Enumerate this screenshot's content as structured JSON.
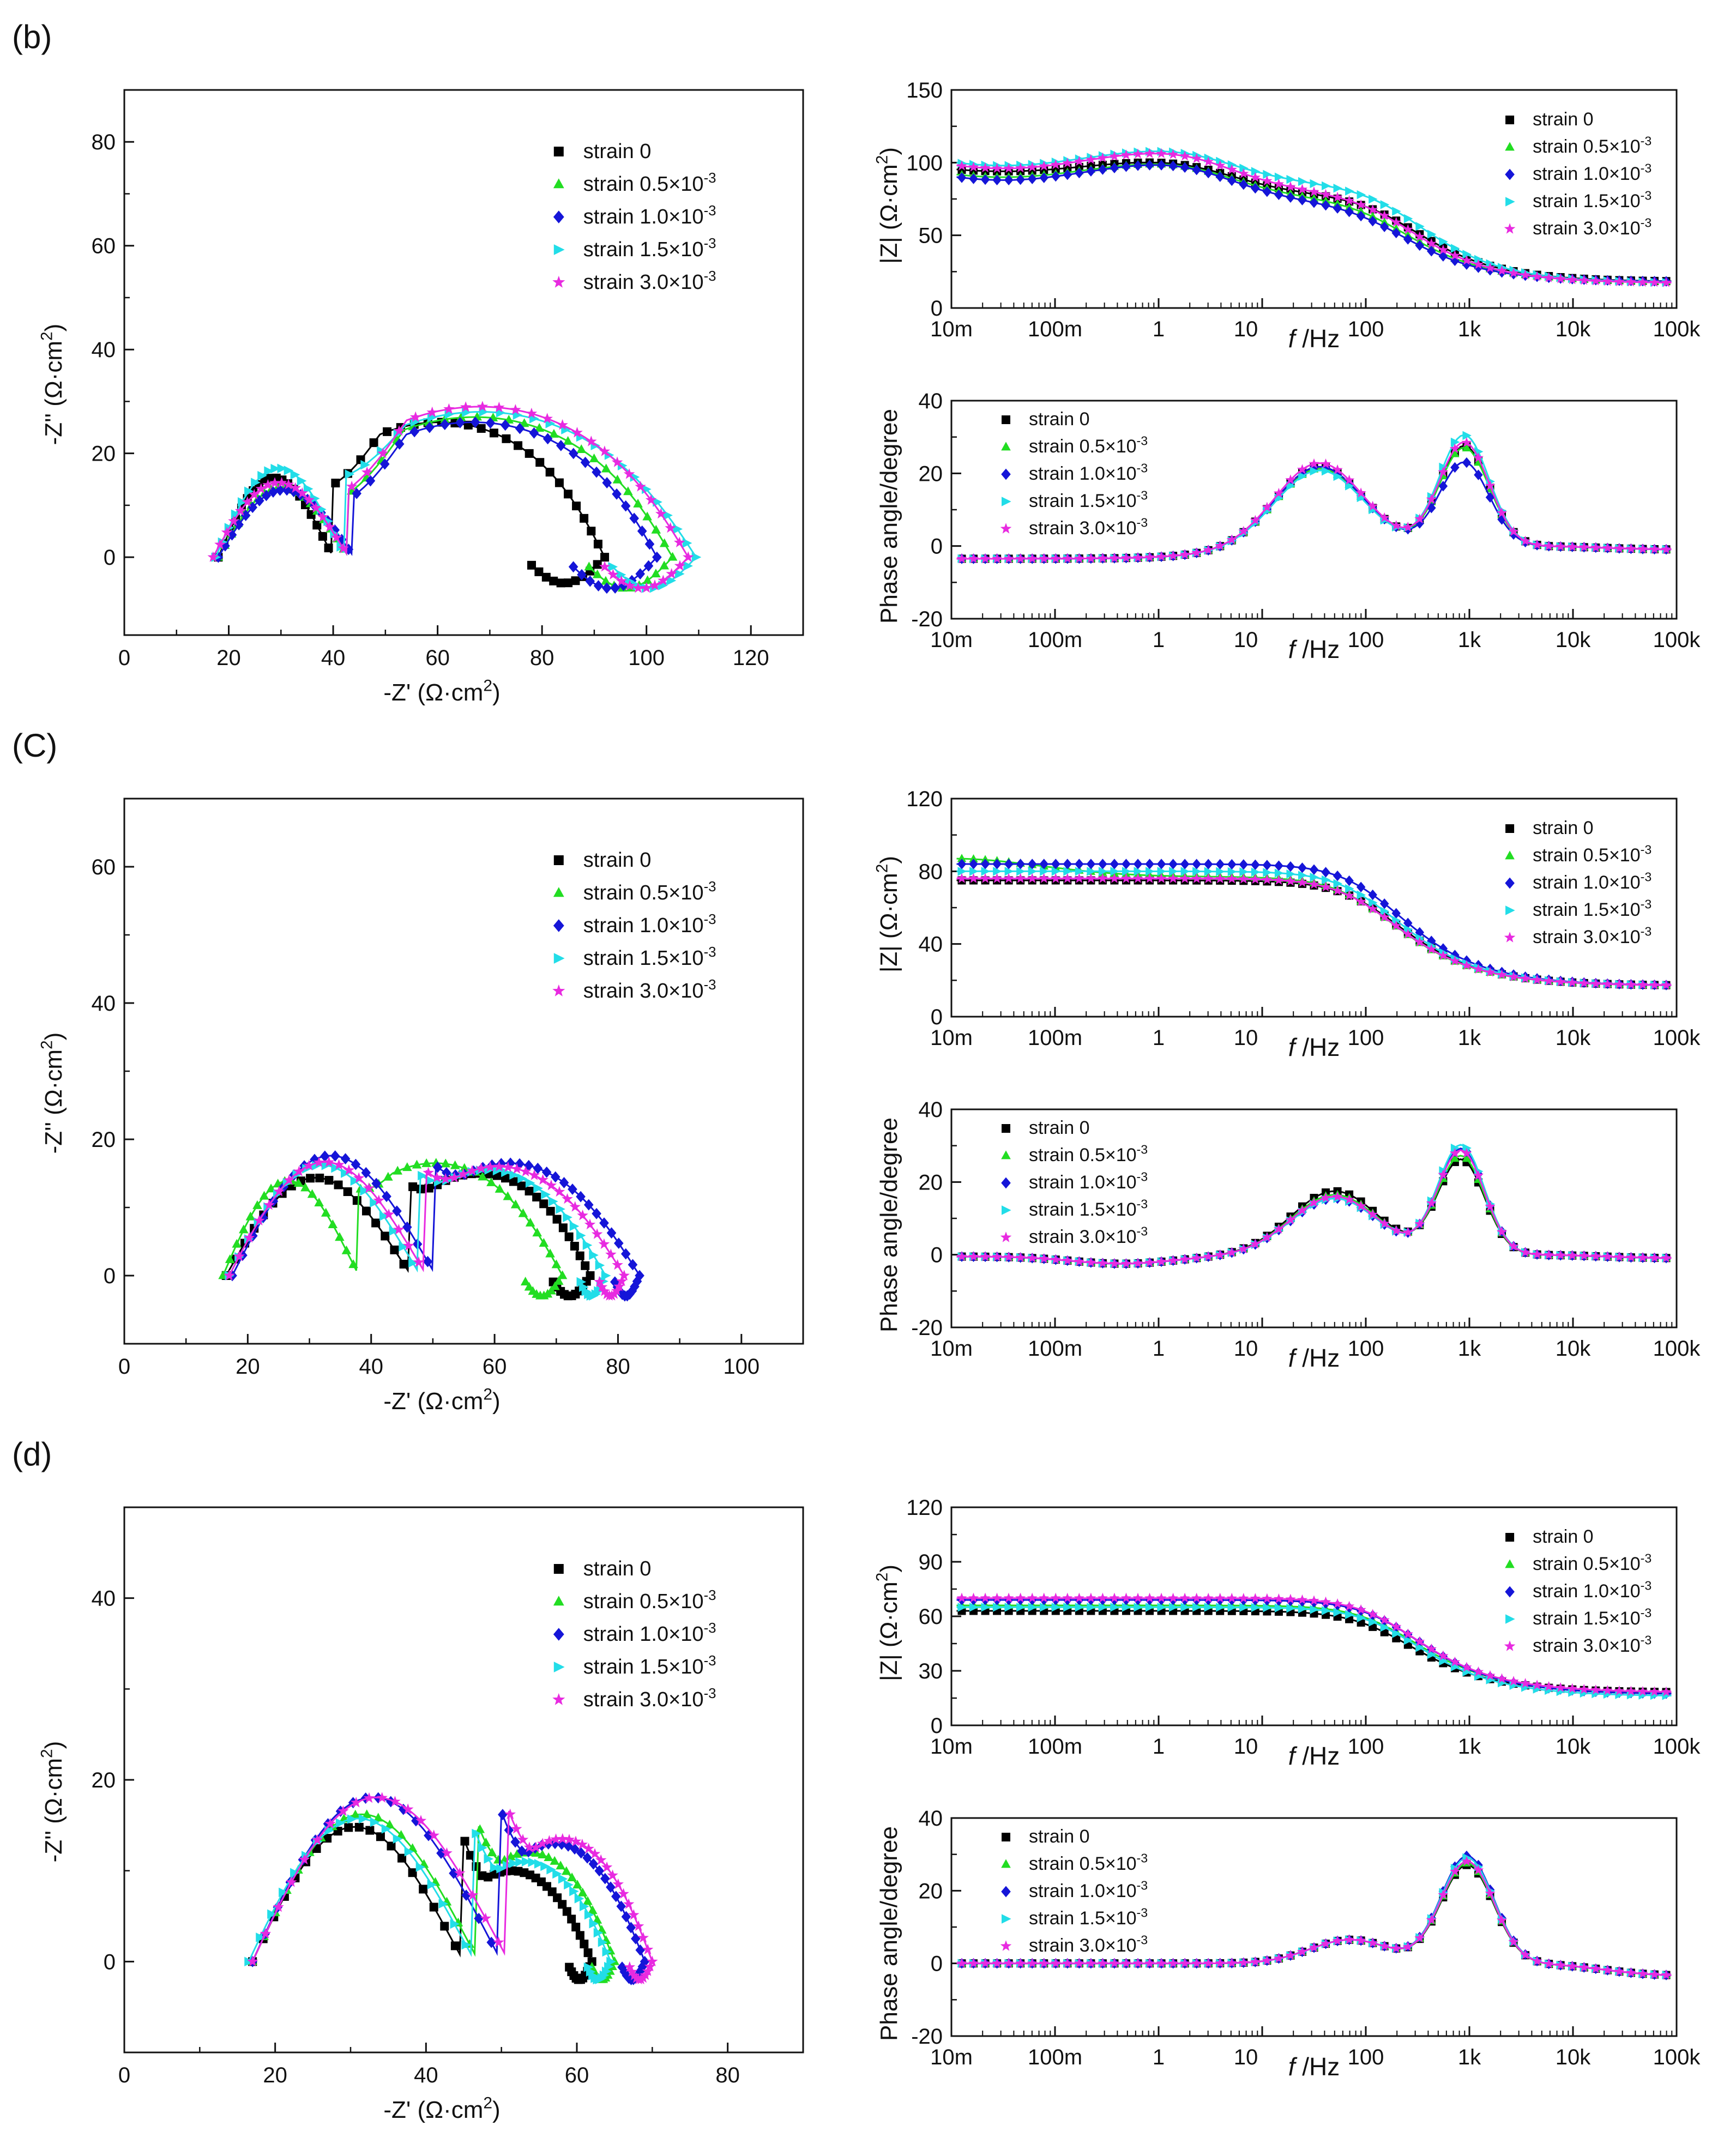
{
  "legend_entries": [
    "strain 0",
    "strain 0.5×10⁻³",
    "strain 1.0×10⁻³",
    "strain 1.5×10⁻³",
    "strain 3.0×10⁻³"
  ],
  "colors": {
    "strain 0": "#000000",
    "strain 0.5×10⁻³": "#22dd22",
    "strain 1.0×10⁻³": "#1515d8",
    "strain 1.5×10⁻³": "#22dde8",
    "strain 3.0×10⁻³": "#e82ae0"
  },
  "panels": [
    {
      "label": "(b)",
      "nyquist": {
        "type": "scatter",
        "xlabel": "-Z' (Ω·cm²)",
        "ylabel": "-Z'' (Ω·cm²)",
        "xlim": [
          0,
          130
        ],
        "ylim": [
          -15,
          90
        ],
        "xticks": [
          0,
          20,
          40,
          60,
          80,
          100,
          120
        ],
        "yticks": [
          0,
          20,
          40,
          60,
          80
        ],
        "legend": "top-right",
        "series": [
          {
            "name": "strain 0",
            "params": {
              "R0": 18.0,
              "R1": 22,
              "A1": 16.5,
              "R2": 52,
              "A2": 26.0,
              "tail": 14,
              "tailW": 5
            }
          },
          {
            "name": "strain 0.5×10⁻³",
            "params": {
              "R0": 18.0,
              "R1": 25,
              "A1": 14.5,
              "R2": 62,
              "A2": 27.0,
              "tail": 16,
              "tailW": 6
            }
          },
          {
            "name": "strain 1.0×10⁻³",
            "params": {
              "R0": 18.0,
              "R1": 26,
              "A1": 14.0,
              "R2": 58,
              "A2": 26.0,
              "tail": 16,
              "tailW": 6
            }
          },
          {
            "name": "strain 1.5×10⁻³",
            "params": {
              "R0": 17.5,
              "R1": 25,
              "A1": 18.5,
              "R2": 67,
              "A2": 28.0,
              "tail": 16,
              "tailW": 6
            }
          },
          {
            "name": "strain 3.0×10⁻³",
            "params": {
              "R0": 17.0,
              "R1": 26,
              "A1": 15.5,
              "R2": 65,
              "A2": 29.0,
              "tail": 16,
              "tailW": 6
            }
          }
        ]
      },
      "modulus": {
        "type": "line",
        "xlabel": "f /Hz",
        "ylabel": "|Z| (Ω·cm²)",
        "ylim": [
          0,
          150
        ],
        "yticks": [
          0,
          50,
          100,
          150
        ],
        "xticklabels": [
          "10m",
          "100m",
          "1",
          "10",
          "100",
          "1k",
          "10k",
          "100k"
        ],
        "legend": "top-right",
        "series": [
          {
            "name": "strain 0",
            "params": {
              "Rs": 18,
              "R1": 58,
              "f1": 200,
              "R2": 28,
              "f2": 3.0,
              "dip": 10,
              "dipPos": 0.3
            }
          },
          {
            "name": "strain 0.5×10⁻³",
            "params": {
              "Rs": 18,
              "R1": 55,
              "f1": 160,
              "R2": 31,
              "f2": 3.0,
              "dip": 14,
              "dipPos": 0.3
            }
          },
          {
            "name": "strain 1.0×10⁻³",
            "params": {
              "Rs": 18,
              "R1": 52,
              "f1": 150,
              "R2": 34,
              "f2": 3.0,
              "dip": 16,
              "dipPos": 0.3
            }
          },
          {
            "name": "strain 1.5×10⁻³",
            "params": {
              "Rs": 17,
              "R1": 66,
              "f1": 220,
              "R2": 30,
              "f2": 3.0,
              "dip": 15,
              "dipPos": 0.3
            }
          },
          {
            "name": "strain 3.0×10⁻³",
            "params": {
              "Rs": 17,
              "R1": 60,
              "f1": 180,
              "R2": 35,
              "f2": 3.0,
              "dip": 16,
              "dipPos": 0.3
            }
          }
        ]
      },
      "phase": {
        "type": "line",
        "xlabel": "f /Hz",
        "ylabel": "Phase angle/degree",
        "ylim": [
          -20,
          40
        ],
        "yticks": [
          -20,
          0,
          20,
          40
        ],
        "xticklabels": [
          "10m",
          "100m",
          "1",
          "10",
          "100",
          "1k",
          "10k",
          "100k"
        ],
        "legend": "top-left",
        "series": [
          {
            "name": "strain 0",
            "params": {
              "base": -3.5,
              "lowPos": -0.7,
              "lowAmp": 0,
              "p1": 22.0,
              "c1": 1.55,
              "w1": 0.6,
              "p2": 27.5,
              "c2": 2.95,
              "w2": 0.34,
              "hiEnd": -1
            }
          },
          {
            "name": "strain 0.5×10⁻³",
            "params": {
              "base": -3.5,
              "lowPos": -0.7,
              "lowAmp": 0,
              "p1": 21.5,
              "c1": 1.55,
              "w1": 0.6,
              "p2": 27.0,
              "c2": 2.95,
              "w2": 0.34,
              "hiEnd": -1
            }
          },
          {
            "name": "strain 1.0×10⁻³",
            "params": {
              "base": -3.5,
              "lowPos": -0.7,
              "lowAmp": 0,
              "p1": 22.0,
              "c1": 1.55,
              "w1": 0.6,
              "p2": 23.0,
              "c2": 2.95,
              "w2": 0.34,
              "hiEnd": -1
            }
          },
          {
            "name": "strain 1.5×10⁻³",
            "params": {
              "base": -3.5,
              "lowPos": -0.7,
              "lowAmp": 0,
              "p1": 21.0,
              "c1": 1.55,
              "w1": 0.6,
              "p2": 30.5,
              "c2": 2.95,
              "w2": 0.34,
              "hiEnd": -1
            }
          },
          {
            "name": "strain 3.0×10⁻³",
            "params": {
              "base": -3.5,
              "lowPos": -0.7,
              "lowAmp": 0,
              "p1": 23.0,
              "c1": 1.55,
              "w1": 0.6,
              "p2": 28.5,
              "c2": 2.95,
              "w2": 0.34,
              "hiEnd": -1
            }
          }
        ]
      }
    },
    {
      "label": "(C)",
      "nyquist": {
        "type": "scatter",
        "xlabel": "-Z' (Ω·cm²)",
        "ylabel": "-Z'' (Ω·cm²)",
        "xlim": [
          0,
          110
        ],
        "ylim": [
          -10,
          70
        ],
        "xticks": [
          0,
          20,
          40,
          60,
          80,
          100
        ],
        "yticks": [
          0,
          20,
          40,
          60
        ],
        "legend": "top-right",
        "series": [
          {
            "name": "strain 0",
            "params": {
              "R0": 16.5,
              "R1": 30,
              "A1": 15.5,
              "R2": 29,
              "A2": 15.0,
              "tail": 6,
              "tailW": 3
            }
          },
          {
            "name": "strain 0.5×10⁻³",
            "params": {
              "R0": 16.0,
              "R1": 22,
              "A1": 15.0,
              "R2": 33,
              "A2": 16.5,
              "tail": 6,
              "tailW": 3
            }
          },
          {
            "name": "strain 1.0×10⁻³",
            "params": {
              "R0": 17.5,
              "R1": 33,
              "A1": 19.0,
              "R2": 33,
              "A2": 16.5,
              "tail": 4,
              "tailW": 3
            }
          },
          {
            "name": "strain 1.5×10⁻³",
            "params": {
              "R0": 17.0,
              "R1": 31,
              "A1": 17.5,
              "R2": 30,
              "A2": 15.5,
              "tail": 4,
              "tailW": 3
            }
          },
          {
            "name": "strain 3.0×10⁻³",
            "params": {
              "R0": 17.0,
              "R1": 32,
              "A1": 18.0,
              "R2": 32,
              "A2": 16.0,
              "tail": 4,
              "tailW": 3
            }
          }
        ]
      },
      "modulus": {
        "type": "line",
        "xlabel": "f /Hz",
        "ylabel": "|Z| (Ω·cm²)",
        "ylim": [
          0,
          120
        ],
        "yticks": [
          0,
          40,
          80,
          120
        ],
        "xticklabels": [
          "10m",
          "100m",
          "1",
          "10",
          "100",
          "1k",
          "10k",
          "100k"
        ],
        "legend": "top-right",
        "series": [
          {
            "name": "strain 0",
            "params": {
              "Rs": 17,
              "R1": 58,
              "f1": 130,
              "R2": 0,
              "f2": 1,
              "dip": 0,
              "dipPos": 0
            }
          },
          {
            "name": "strain 0.5×10⁻³",
            "params": {
              "Rs": 17,
              "R1": 60,
              "f1": 115,
              "R2": 0,
              "f2": 1,
              "dip": -10,
              "dipPos": -0.2
            }
          },
          {
            "name": "strain 1.0×10⁻³",
            "params": {
              "Rs": 17,
              "R1": 67,
              "f1": 135,
              "R2": 0,
              "f2": 1,
              "dip": 0,
              "dipPos": 0
            }
          },
          {
            "name": "strain 1.5×10⁻³",
            "params": {
              "Rs": 17,
              "R1": 63,
              "f1": 125,
              "R2": 0,
              "f2": 1,
              "dip": 0,
              "dipPos": 0
            }
          },
          {
            "name": "strain 3.0×10⁻³",
            "params": {
              "Rs": 17,
              "R1": 59,
              "f1": 120,
              "R2": 0,
              "f2": 1,
              "dip": 0,
              "dipPos": 0
            }
          }
        ]
      },
      "phase": {
        "type": "line",
        "xlabel": "f /Hz",
        "ylabel": "Phase angle/degree",
        "ylim": [
          -20,
          40
        ],
        "yticks": [
          -20,
          0,
          20,
          40
        ],
        "xticklabels": [
          "10m",
          "100m",
          "1",
          "10",
          "100",
          "1k",
          "10k",
          "100k"
        ],
        "legend": "top-left",
        "series": [
          {
            "name": "strain 0",
            "params": {
              "base": -0.5,
              "lowPos": -0.35,
              "lowAmp": 2,
              "p1": 17.5,
              "c1": 1.7,
              "w1": 0.6,
              "p2": 26.0,
              "c2": 2.92,
              "w2": 0.32,
              "hiEnd": -1
            }
          },
          {
            "name": "strain 0.5×10⁻³",
            "params": {
              "base": -0.5,
              "lowPos": -0.35,
              "lowAmp": 2,
              "p1": 16.5,
              "c1": 1.7,
              "w1": 0.6,
              "p2": 27.0,
              "c2": 2.92,
              "w2": 0.32,
              "hiEnd": -1
            }
          },
          {
            "name": "strain 1.0×10⁻³",
            "params": {
              "base": -0.5,
              "lowPos": -0.35,
              "lowAmp": 2,
              "p1": 15.5,
              "c1": 1.7,
              "w1": 0.6,
              "p2": 29.0,
              "c2": 2.92,
              "w2": 0.32,
              "hiEnd": -1
            }
          },
          {
            "name": "strain 1.5×10⁻³",
            "params": {
              "base": -0.5,
              "lowPos": -0.35,
              "lowAmp": 2,
              "p1": 15.5,
              "c1": 1.7,
              "w1": 0.6,
              "p2": 30.0,
              "c2": 2.92,
              "w2": 0.32,
              "hiEnd": -1
            }
          },
          {
            "name": "strain 3.0×10⁻³",
            "params": {
              "base": -0.5,
              "lowPos": -0.35,
              "lowAmp": 2,
              "p1": 16.0,
              "c1": 1.7,
              "w1": 0.6,
              "p2": 28.5,
              "c2": 2.92,
              "w2": 0.32,
              "hiEnd": -1
            }
          }
        ]
      }
    },
    {
      "label": "(d)",
      "nyquist": {
        "type": "scatter",
        "xlabel": "-Z' (Ω·cm²)",
        "ylabel": "-Z'' (Ω·cm²)",
        "xlim": [
          0,
          90
        ],
        "ylim": [
          -10,
          50
        ],
        "xticks": [
          0,
          20,
          40,
          60,
          80
        ],
        "yticks": [
          0,
          20,
          40
        ],
        "legend": "top-right",
        "series": [
          {
            "name": "strain 0",
            "params": {
              "R0": 17.0,
              "R1": 28,
              "A1": 16.0,
              "R2": 17,
              "A2": 10.0,
              "tail": 3,
              "tailW": 2
            }
          },
          {
            "name": "strain 0.5×10⁻³",
            "params": {
              "R0": 17.0,
              "R1": 30,
              "A1": 17.5,
              "R2": 18,
              "A2": 12.0,
              "tail": 3,
              "tailW": 2
            }
          },
          {
            "name": "strain 1.0×10⁻³",
            "params": {
              "R0": 17.0,
              "R1": 33,
              "A1": 19.5,
              "R2": 19,
              "A2": 13.0,
              "tail": 3,
              "tailW": 2
            }
          },
          {
            "name": "strain 1.5×10⁻³",
            "params": {
              "R0": 16.5,
              "R1": 30,
              "A1": 17.0,
              "R2": 18,
              "A2": 11.0,
              "tail": 3,
              "tailW": 2
            }
          },
          {
            "name": "strain 3.0×10⁻³",
            "params": {
              "R0": 17.0,
              "R1": 34,
              "A1": 19.5,
              "R2": 19,
              "A2": 13.5,
              "tail": 3,
              "tailW": 2
            }
          }
        ]
      },
      "modulus": {
        "type": "line",
        "xlabel": "f /Hz",
        "ylabel": "|Z| (Ω·cm²)",
        "ylim": [
          0,
          120
        ],
        "yticks": [
          0,
          30,
          60,
          90,
          120
        ],
        "xticklabels": [
          "10m",
          "100m",
          "1",
          "10",
          "100",
          "1k",
          "10k",
          "100k"
        ],
        "legend": "top-right",
        "series": [
          {
            "name": "strain 0",
            "params": {
              "Rs": 18,
              "R1": 45,
              "f1": 170,
              "R2": 0,
              "f2": 1,
              "dip": 0,
              "dipPos": 0
            }
          },
          {
            "name": "strain 0.5×10⁻³",
            "params": {
              "Rs": 18,
              "R1": 48,
              "f1": 190,
              "R2": 0,
              "f2": 1,
              "dip": 0,
              "dipPos": 0
            }
          },
          {
            "name": "strain 1.0×10⁻³",
            "params": {
              "Rs": 17,
              "R1": 52,
              "f1": 200,
              "R2": 0,
              "f2": 1,
              "dip": 0,
              "dipPos": 0
            }
          },
          {
            "name": "strain 1.5×10⁻³",
            "params": {
              "Rs": 16,
              "R1": 49,
              "f1": 195,
              "R2": 0,
              "f2": 1,
              "dip": 0,
              "dipPos": 0
            }
          },
          {
            "name": "strain 3.0×10⁻³",
            "params": {
              "Rs": 18,
              "R1": 52,
              "f1": 190,
              "R2": 0,
              "f2": 1,
              "dip": 0,
              "dipPos": 0
            }
          }
        ]
      },
      "phase": {
        "type": "line",
        "xlabel": "f /Hz",
        "ylabel": "Phase angle/degree",
        "ylim": [
          -20,
          40
        ],
        "yticks": [
          -20,
          0,
          20,
          40
        ],
        "xticklabels": [
          "10m",
          "100m",
          "1",
          "10",
          "100",
          "1k",
          "10k",
          "100k"
        ],
        "legend": "top-left",
        "series": [
          {
            "name": "strain 0",
            "params": {
              "base": 0,
              "lowPos": 0,
              "lowAmp": 0,
              "p1": 6.5,
              "c1": 1.85,
              "w1": 0.55,
              "p2": 27.0,
              "c2": 2.98,
              "w2": 0.36,
              "hiEnd": -3.5
            }
          },
          {
            "name": "strain 0.5×10⁻³",
            "params": {
              "base": 0,
              "lowPos": 0,
              "lowAmp": 0,
              "p1": 6.5,
              "c1": 1.85,
              "w1": 0.55,
              "p2": 27.5,
              "c2": 2.98,
              "w2": 0.36,
              "hiEnd": -3.5
            }
          },
          {
            "name": "strain 1.0×10⁻³",
            "params": {
              "base": 0,
              "lowPos": 0,
              "lowAmp": 0,
              "p1": 6.5,
              "c1": 1.85,
              "w1": 0.55,
              "p2": 29.5,
              "c2": 2.98,
              "w2": 0.36,
              "hiEnd": -3.5
            }
          },
          {
            "name": "strain 1.5×10⁻³",
            "params": {
              "base": 0,
              "lowPos": 0,
              "lowAmp": 0,
              "p1": 6.5,
              "c1": 1.85,
              "w1": 0.55,
              "p2": 29.0,
              "c2": 2.98,
              "w2": 0.36,
              "hiEnd": -3.5
            }
          },
          {
            "name": "strain 3.0×10⁻³",
            "params": {
              "base": 0,
              "lowPos": 0,
              "lowAmp": 0,
              "p1": 6.5,
              "c1": 1.85,
              "w1": 0.55,
              "p2": 28.0,
              "c2": 2.98,
              "w2": 0.36,
              "hiEnd": -3.5
            }
          }
        ]
      }
    }
  ]
}
